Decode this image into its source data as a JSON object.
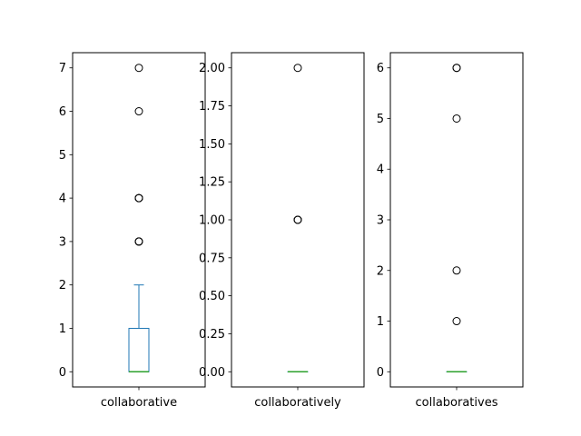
{
  "chart_data": [
    {
      "type": "box",
      "category": "collaborative",
      "ylim": [
        -0.35,
        7.35
      ],
      "yticks": [
        "0",
        "1",
        "2",
        "3",
        "4",
        "5",
        "6",
        "7"
      ],
      "ytick_values": [
        0,
        1,
        2,
        3,
        4,
        5,
        6,
        7
      ],
      "box": {
        "q1": 0,
        "median": 0,
        "q3": 1,
        "whisker_low": 0,
        "whisker_high": 2
      },
      "outliers": [
        3,
        3,
        3,
        4,
        4,
        4,
        6,
        7
      ]
    },
    {
      "type": "box",
      "category": "collaboratively",
      "ylim": [
        -0.1,
        2.1
      ],
      "yticks": [
        "0.00",
        "0.25",
        "0.50",
        "0.75",
        "1.00",
        "1.25",
        "1.50",
        "1.75",
        "2.00"
      ],
      "ytick_values": [
        0,
        0.25,
        0.5,
        0.75,
        1.0,
        1.25,
        1.5,
        1.75,
        2.0
      ],
      "box": {
        "q1": 0,
        "median": 0,
        "q3": 0,
        "whisker_low": 0,
        "whisker_high": 0
      },
      "outliers": [
        1,
        1,
        1,
        2
      ]
    },
    {
      "type": "box",
      "category": "collaboratives",
      "ylim": [
        -0.3,
        6.3
      ],
      "yticks": [
        "0",
        "1",
        "2",
        "3",
        "4",
        "5",
        "6"
      ],
      "ytick_values": [
        0,
        1,
        2,
        3,
        4,
        5,
        6
      ],
      "box": {
        "q1": 0,
        "median": 0,
        "q3": 0,
        "whisker_low": 0,
        "whisker_high": 0
      },
      "outliers": [
        1,
        2,
        5,
        6,
        6
      ]
    }
  ],
  "colors": {
    "box": "#1f77b4",
    "median": "#2ca02c",
    "outlier": "#000000"
  }
}
